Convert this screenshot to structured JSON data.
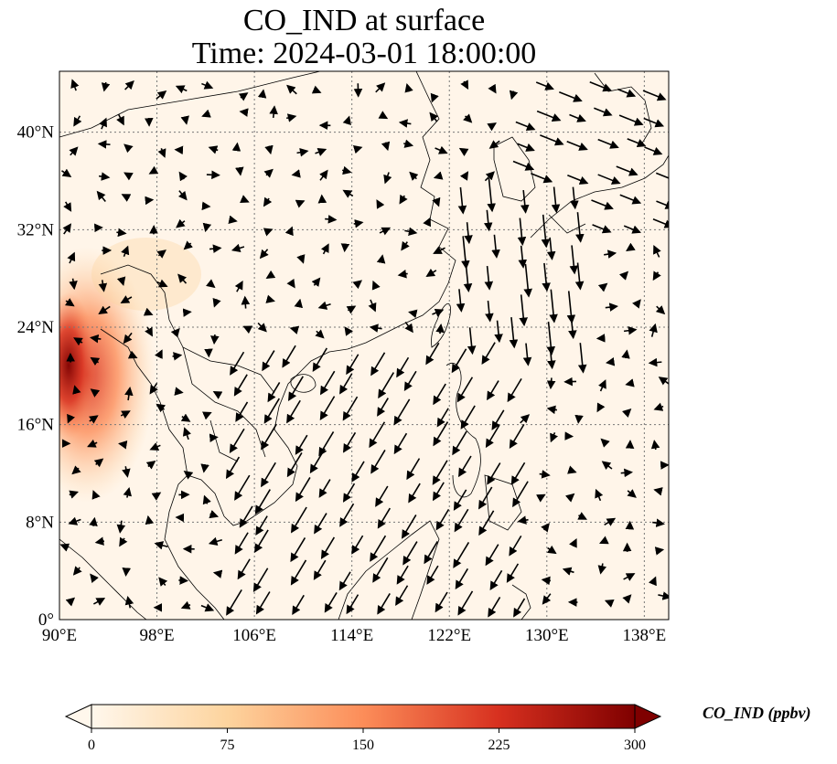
{
  "title": {
    "line1": "CO_IND at surface",
    "line2": "Time: 2024-03-01 18:00:00"
  },
  "map": {
    "lon_range": [
      90,
      140
    ],
    "lat_range": [
      0,
      45
    ],
    "lon_ticks": [
      "90°E",
      "98°E",
      "106°E",
      "114°E",
      "122°E",
      "130°E",
      "138°E"
    ],
    "lat_ticks": [
      "0°",
      "8°N",
      "16°N",
      "24°N",
      "32°N",
      "40°N"
    ],
    "gridlines": true,
    "field": "CO_IND",
    "feature": "high CO concentration over Myanmar / Bay of Bengal coast (~18–26°N, 90–93°E), up to ~300 ppbv; near zero elsewhere"
  },
  "colorbar": {
    "label": "CO_IND (ppbv)",
    "ticks": [
      "0",
      "75",
      "150",
      "225",
      "300"
    ],
    "range": [
      0,
      300
    ],
    "colormap": "OrRd",
    "extend": "both",
    "colors": [
      "#fff7ec",
      "#fdd49e",
      "#fc8d59",
      "#d7301f",
      "#7f0000"
    ]
  }
}
